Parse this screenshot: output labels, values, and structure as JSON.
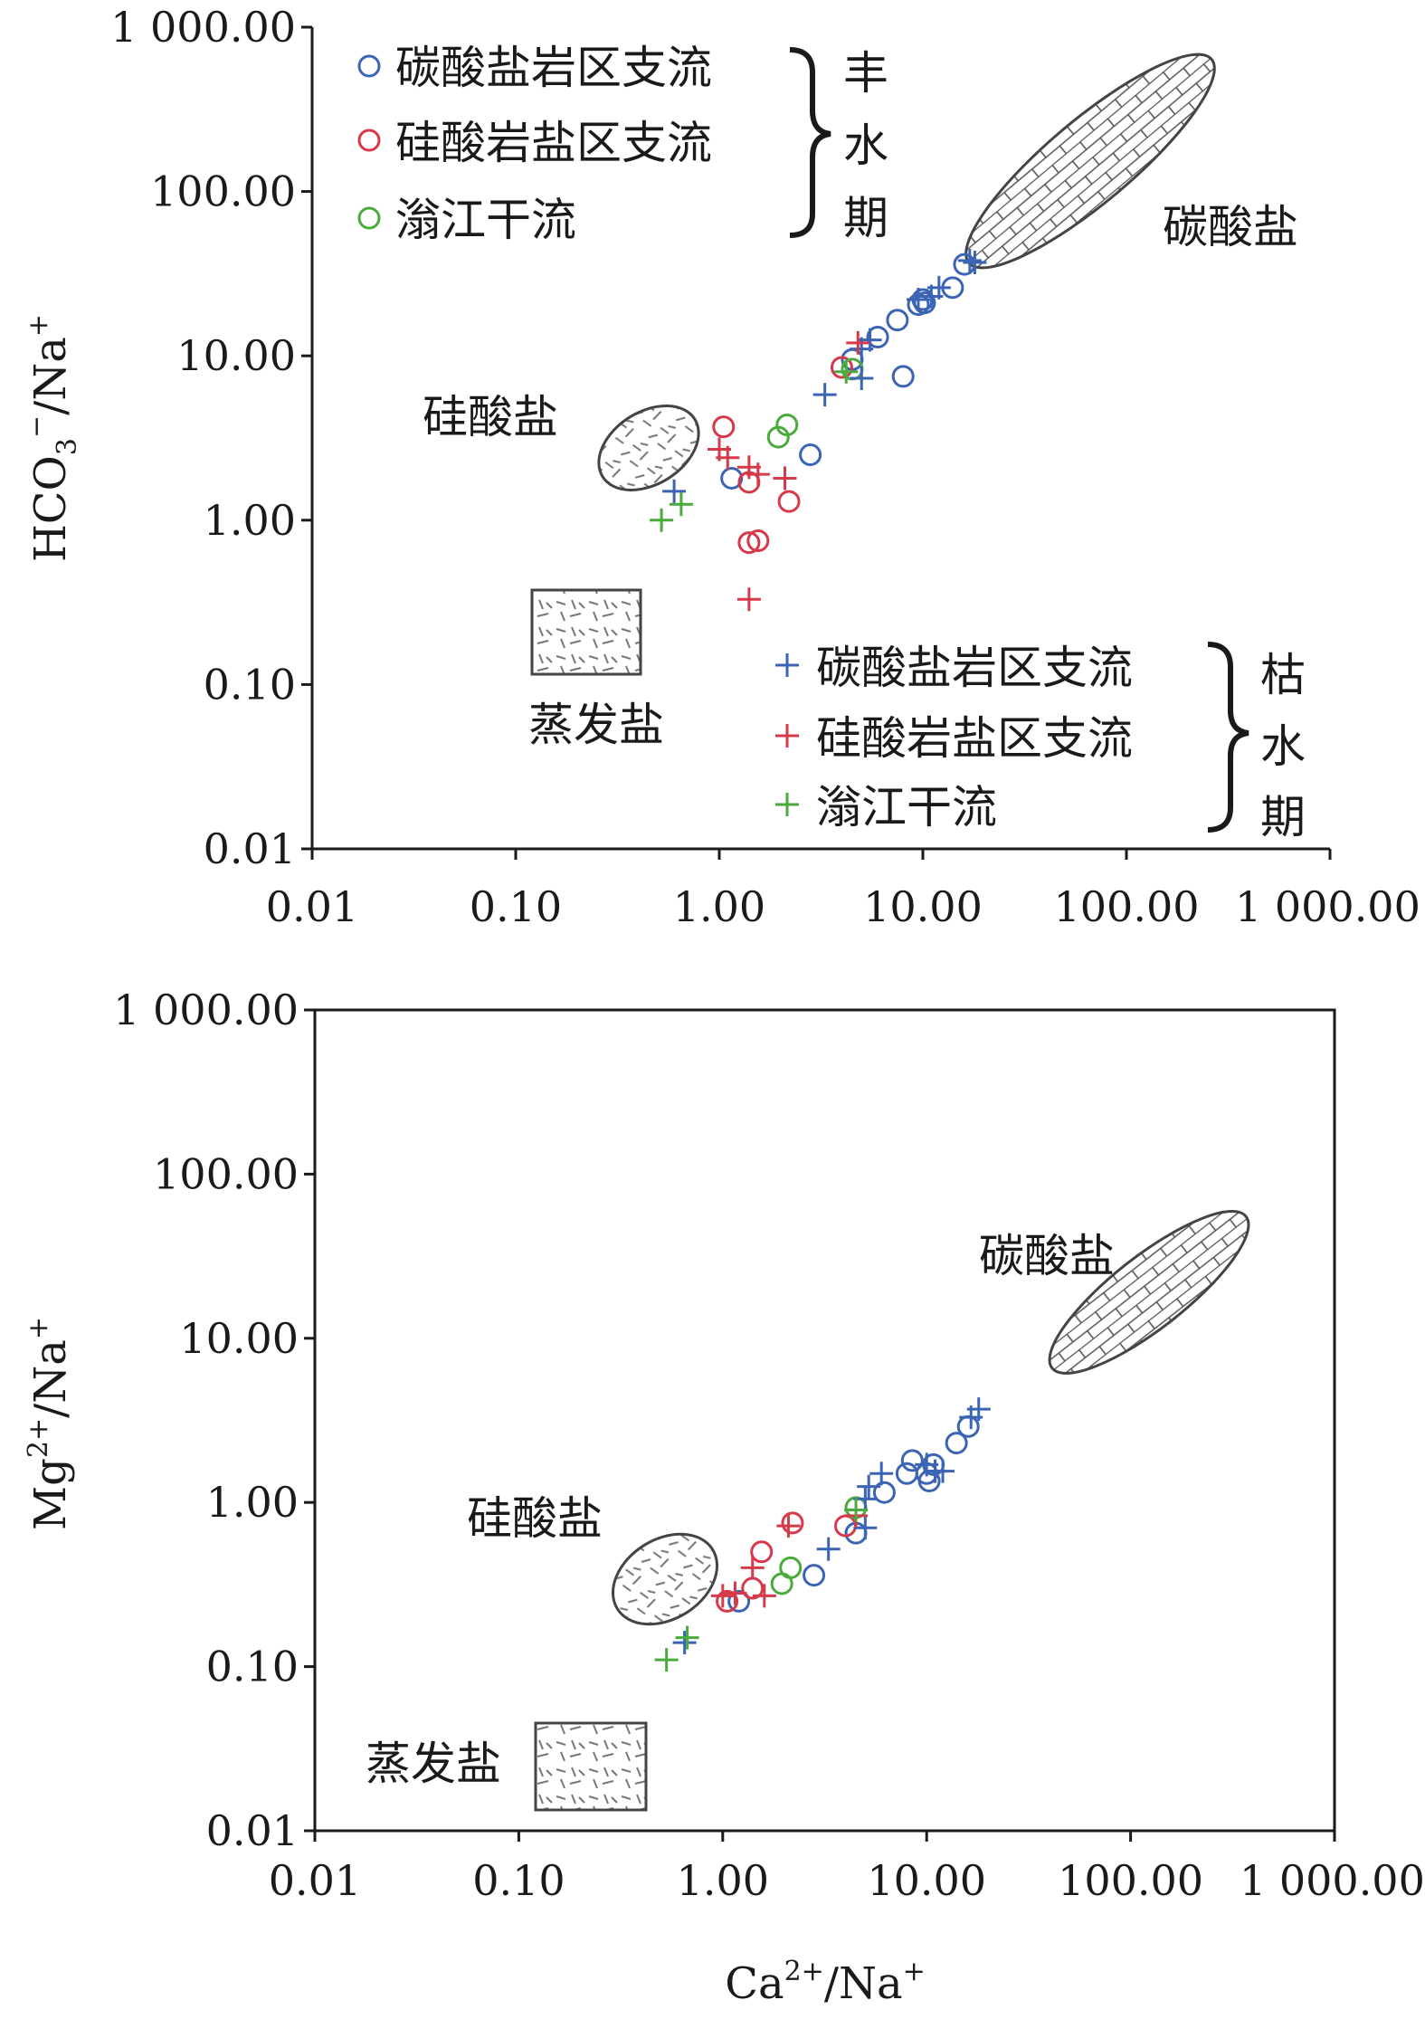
{
  "chart_data": [
    {
      "type": "scatter",
      "id": "top",
      "xscale": "log",
      "yscale": "log",
      "xlim": [
        0.01,
        1000
      ],
      "ylim": [
        0.01,
        1000
      ],
      "xticks": [
        "0.01",
        "0.10",
        "1.00",
        "10.00",
        "100.00",
        "1 000.00"
      ],
      "yticks": [
        "0.01",
        "0.10",
        "1.00",
        "10.00",
        "100.00",
        "1 000.00"
      ],
      "xlabel": "",
      "ylabel": "HCO3−/Na+",
      "ylabel_parts": {
        "a": "HCO",
        "b": "3",
        "c": "−",
        "d": "/Na",
        "e": "+"
      },
      "regions": [
        {
          "name": "carbonate",
          "label": "碳酸盐"
        },
        {
          "name": "silicate",
          "label": "硅酸盐"
        },
        {
          "name": "evaporite",
          "label": "蒸发盐"
        }
      ],
      "legend_wet": {
        "season": "丰水期",
        "season_chars": [
          "丰",
          "水",
          "期"
        ],
        "entries": [
          {
            "label": "碳酸盐岩区支流",
            "marker": "circle",
            "color": "#3b64b4"
          },
          {
            "label": "硅酸岩盐区支流",
            "marker": "circle",
            "color": "#d63a4a"
          },
          {
            "label": "滃江干流",
            "marker": "circle",
            "color": "#4aaa3c"
          }
        ]
      },
      "legend_dry": {
        "season": "枯水期",
        "season_chars": [
          "枯",
          "水",
          "期"
        ],
        "entries": [
          {
            "label": "碳酸盐岩区支流",
            "marker": "plus",
            "color": "#3b64b4"
          },
          {
            "label": "硅酸岩盐区支流",
            "marker": "plus",
            "color": "#d63a4a"
          },
          {
            "label": "滃江干流",
            "marker": "plus",
            "color": "#4aaa3c"
          }
        ]
      },
      "series": [
        {
          "name": "碳酸盐岩区支流 丰水期",
          "marker": "circle",
          "color": "#3b64b4",
          "points": [
            [
              1.15,
              1.8
            ],
            [
              2.8,
              2.5
            ],
            [
              8,
              7.5
            ],
            [
              4.5,
              9.5
            ],
            [
              6,
              13
            ],
            [
              7.5,
              16.5
            ],
            [
              9.5,
              20.5
            ],
            [
              10,
              22
            ],
            [
              10.2,
              21
            ],
            [
              14,
              26
            ],
            [
              16,
              36
            ]
          ]
        },
        {
          "name": "硅酸岩盐区支流 丰水期",
          "marker": "circle",
          "color": "#d63a4a",
          "points": [
            [
              1.05,
              3.7
            ],
            [
              1.4,
              1.7
            ],
            [
              2.2,
              1.3
            ],
            [
              1.4,
              0.73
            ],
            [
              1.55,
              0.75
            ],
            [
              4,
              8.5
            ]
          ]
        },
        {
          "name": "滃江干流 丰水期",
          "marker": "circle",
          "color": "#4aaa3c",
          "points": [
            [
              1.95,
              3.2
            ],
            [
              2.15,
              3.8
            ],
            [
              4.5,
              8.3
            ]
          ]
        },
        {
          "name": "碳酸盐岩区支流 枯水期",
          "marker": "plus",
          "color": "#3b64b4",
          "points": [
            [
              0.6,
              1.5
            ],
            [
              3.3,
              5.8
            ],
            [
              5,
              7.3
            ],
            [
              5,
              11
            ],
            [
              5.5,
              12.5
            ],
            [
              9.5,
              22
            ],
            [
              11,
              23
            ],
            [
              12,
              26
            ],
            [
              17,
              38
            ],
            [
              18,
              37
            ]
          ]
        },
        {
          "name": "硅酸岩盐区支流 枯水期",
          "marker": "plus",
          "color": "#d63a4a",
          "points": [
            [
              1,
              2.7
            ],
            [
              1.1,
              2.4
            ],
            [
              1.4,
              2.1
            ],
            [
              1.55,
              1.9
            ],
            [
              2.1,
              1.8
            ],
            [
              1.4,
              0.33
            ],
            [
              4.8,
              12
            ]
          ]
        },
        {
          "name": "滃江干流 枯水期",
          "marker": "plus",
          "color": "#4aaa3c",
          "points": [
            [
              0.52,
              1.0
            ],
            [
              0.65,
              1.25
            ],
            [
              4.2,
              8
            ]
          ]
        }
      ]
    },
    {
      "type": "scatter",
      "id": "bottom",
      "xscale": "log",
      "yscale": "log",
      "xlim": [
        0.01,
        1000
      ],
      "ylim": [
        0.01,
        1000
      ],
      "xticks": [
        "0.01",
        "0.10",
        "1.00",
        "10.00",
        "100.00",
        "1 000.00"
      ],
      "yticks": [
        "0.01",
        "0.10",
        "1.00",
        "10.00",
        "100.00",
        "1 000.00"
      ],
      "xlabel": "Ca2+/Na+",
      "xlabel_parts": {
        "a": "Ca",
        "b": "2+",
        "c": "/Na",
        "d": "+"
      },
      "ylabel": "Mg2+/Na+",
      "ylabel_parts": {
        "a": "Mg",
        "b": "2+",
        "c": "/Na",
        "d": "+"
      },
      "regions": [
        {
          "name": "carbonate",
          "label": "碳酸盐"
        },
        {
          "name": "silicate",
          "label": "硅酸盐"
        },
        {
          "name": "evaporite",
          "label": "蒸发盐"
        }
      ],
      "series": [
        {
          "name": "碳酸盐岩区支流 丰水期",
          "marker": "circle",
          "color": "#3b64b4",
          "points": [
            [
              1.2,
              0.25
            ],
            [
              2.8,
              0.36
            ],
            [
              4.5,
              0.65
            ],
            [
              6.2,
              1.15
            ],
            [
              8,
              1.5
            ],
            [
              8.5,
              1.8
            ],
            [
              10,
              1.5
            ],
            [
              10.3,
              1.35
            ],
            [
              10.8,
              1.7
            ],
            [
              14,
              2.3
            ],
            [
              16,
              2.9
            ]
          ]
        },
        {
          "name": "硅酸岩盐区支流 丰水期",
          "marker": "circle",
          "color": "#d63a4a",
          "points": [
            [
              1.05,
              0.25
            ],
            [
              1.4,
              0.3
            ],
            [
              1.55,
              0.5
            ],
            [
              2.2,
              0.75
            ],
            [
              4,
              0.72
            ]
          ]
        },
        {
          "name": "滃江干流 丰水期",
          "marker": "circle",
          "color": "#4aaa3c",
          "points": [
            [
              1.95,
              0.32
            ],
            [
              2.15,
              0.4
            ],
            [
              4.5,
              0.93
            ]
          ]
        },
        {
          "name": "碳酸盐岩区支流 枯水期",
          "marker": "plus",
          "color": "#3b64b4",
          "points": [
            [
              0.65,
              0.14
            ],
            [
              3.3,
              0.52
            ],
            [
              5,
              0.7
            ],
            [
              5,
              1.05
            ],
            [
              5.2,
              1.25
            ],
            [
              6,
              1.5
            ],
            [
              10,
              1.7
            ],
            [
              11,
              1.55
            ],
            [
              12,
              1.55
            ],
            [
              16.5,
              3.3
            ],
            [
              18,
              3.7
            ]
          ]
        },
        {
          "name": "硅酸岩盐区支流 枯水期",
          "marker": "plus",
          "color": "#d63a4a",
          "points": [
            [
              1,
              0.27
            ],
            [
              1.15,
              0.28
            ],
            [
              1.4,
              0.4
            ],
            [
              1.6,
              0.27
            ],
            [
              2.1,
              0.72
            ],
            [
              4.5,
              0.83
            ]
          ]
        },
        {
          "name": "滃江干流 枯水期",
          "marker": "plus",
          "color": "#4aaa3c",
          "points": [
            [
              0.53,
              0.11
            ],
            [
              0.67,
              0.15
            ],
            [
              4.5,
              0.9
            ]
          ]
        }
      ]
    }
  ]
}
